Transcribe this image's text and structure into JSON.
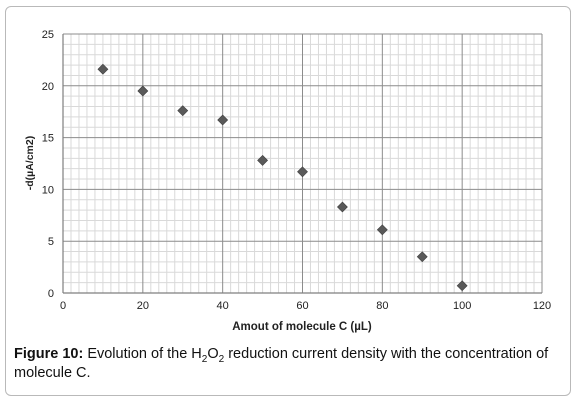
{
  "chart_data": {
    "type": "scatter",
    "x": [
      10,
      20,
      30,
      40,
      50,
      60,
      70,
      80,
      90,
      100
    ],
    "y": [
      21.6,
      19.5,
      17.6,
      16.7,
      12.8,
      11.7,
      8.3,
      6.1,
      3.5,
      0.7
    ],
    "xlabel": "Amout  of molecule C (µL)",
    "ylabel": "-d(µA/cm2)",
    "xlim": [
      0,
      120
    ],
    "ylim": [
      0,
      25
    ],
    "xticks": [
      "0",
      "20",
      "40",
      "60",
      "80",
      "100",
      "120"
    ],
    "yticks": [
      "0",
      "5",
      "10",
      "15",
      "20",
      "25"
    ],
    "grid": true,
    "marker": "diamond",
    "marker_color": "#595959"
  },
  "caption": {
    "label": "Figure 10:",
    "text_before": " Evolution of the H",
    "sub1": "2",
    "mid": "O",
    "sub2": "2",
    "text_after": " reduction current density with the concentration of molecule C."
  }
}
